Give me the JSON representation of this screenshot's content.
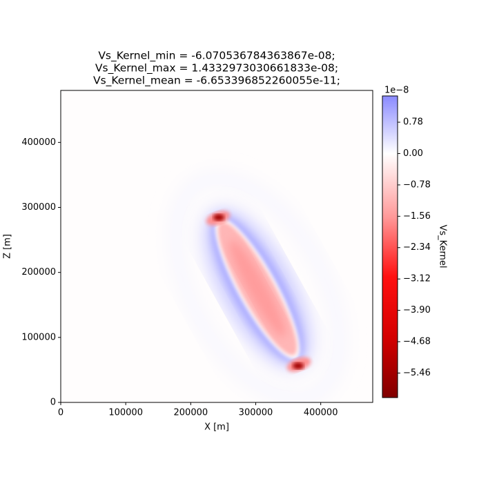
{
  "chart_data": {
    "type": "heatmap",
    "title": [
      "Vs_Kernel_min = -6.070536784363867e-08;",
      "Vs_Kernel_max = 1.4332973030661833e-08;",
      "Vs_Kernel_mean = -6.653396852260055e-11;"
    ],
    "x_label": "X [m]",
    "y_label": "Z [m]",
    "xlim": [
      0,
      480000
    ],
    "ylim": [
      0,
      480000
    ],
    "xticks": [
      0,
      100000,
      200000,
      300000,
      400000
    ],
    "yticks": [
      0,
      100000,
      200000,
      300000,
      400000
    ],
    "colorbar": {
      "label": "Vs_Kernel",
      "offset_text": "1e−8",
      "clim": [
        -6.070536784363867,
        1.4332973030661833
      ],
      "ticks": [
        {
          "value": 0.78,
          "label": "0.78"
        },
        {
          "value": 0,
          "label": "0.00"
        },
        {
          "value": -0.78,
          "label": "−0.78"
        },
        {
          "value": -1.56,
          "label": "−1.56"
        },
        {
          "value": -2.34,
          "label": "−2.34"
        },
        {
          "value": -3.12,
          "label": "−3.12"
        },
        {
          "value": -3.9,
          "label": "−3.90"
        },
        {
          "value": -4.68,
          "label": "−4.68"
        },
        {
          "value": -5.46,
          "label": "−5.46"
        }
      ]
    }
  }
}
